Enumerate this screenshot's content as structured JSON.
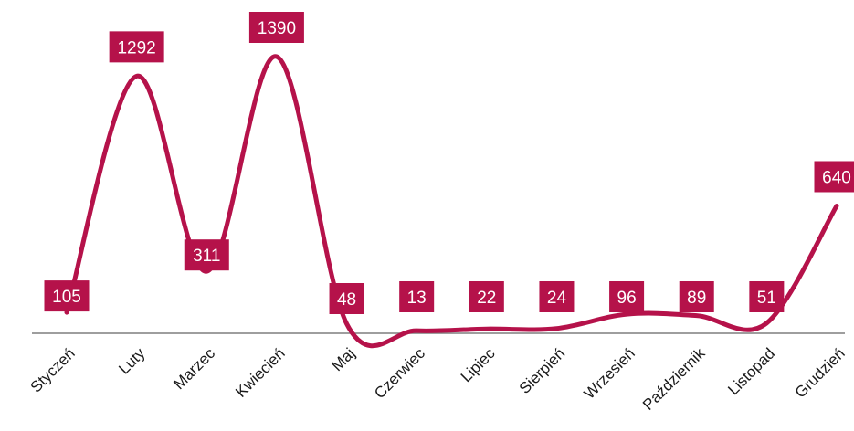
{
  "chart_data": {
    "type": "line",
    "categories": [
      "Styczeń",
      "Luty",
      "Marzec",
      "Kwiecień",
      "Maj",
      "Czerwiec",
      "Lipiec",
      "Sierpień",
      "Wrzesień",
      "Październik",
      "Listopad",
      "Grudzień"
    ],
    "series": [
      {
        "values": [
          105,
          1292,
          311,
          1390,
          48,
          13,
          22,
          24,
          96,
          89,
          51,
          640
        ]
      }
    ],
    "smooth": true,
    "grid": false,
    "legend": "none",
    "line_color": "#b5124a",
    "label_bg_color": "#b5124a",
    "label_text_color": "#ffffff",
    "axis_color": "#7f7f7f"
  }
}
